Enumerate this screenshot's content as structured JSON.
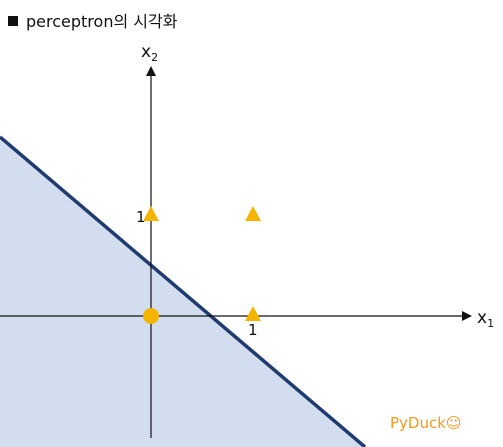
{
  "title": {
    "text": "perceptron의 시각화"
  },
  "axes": {
    "x_label": "x",
    "x_subscript": "1",
    "y_label": "x",
    "y_subscript": "2",
    "x_tick_one": "1",
    "y_tick_one": "1"
  },
  "colors": {
    "region_fill": "#d2ddf0",
    "boundary_line": "#1f3b70",
    "marker": "#f5b400",
    "axis": "#111111",
    "watermark": "#f29a1e"
  },
  "chart_data": {
    "type": "scatter",
    "points": [
      {
        "x": 0,
        "y": 0,
        "marker": "circle"
      },
      {
        "x": 1,
        "y": 0,
        "marker": "triangle"
      },
      {
        "x": 0,
        "y": 1,
        "marker": "triangle"
      },
      {
        "x": 1,
        "y": 1,
        "marker": "triangle"
      }
    ],
    "boundary_line": {
      "slope": -1,
      "intercept": 0.5
    },
    "shaded_region": "below-left of boundary"
  },
  "watermark": {
    "text": "PyDuck☺"
  }
}
